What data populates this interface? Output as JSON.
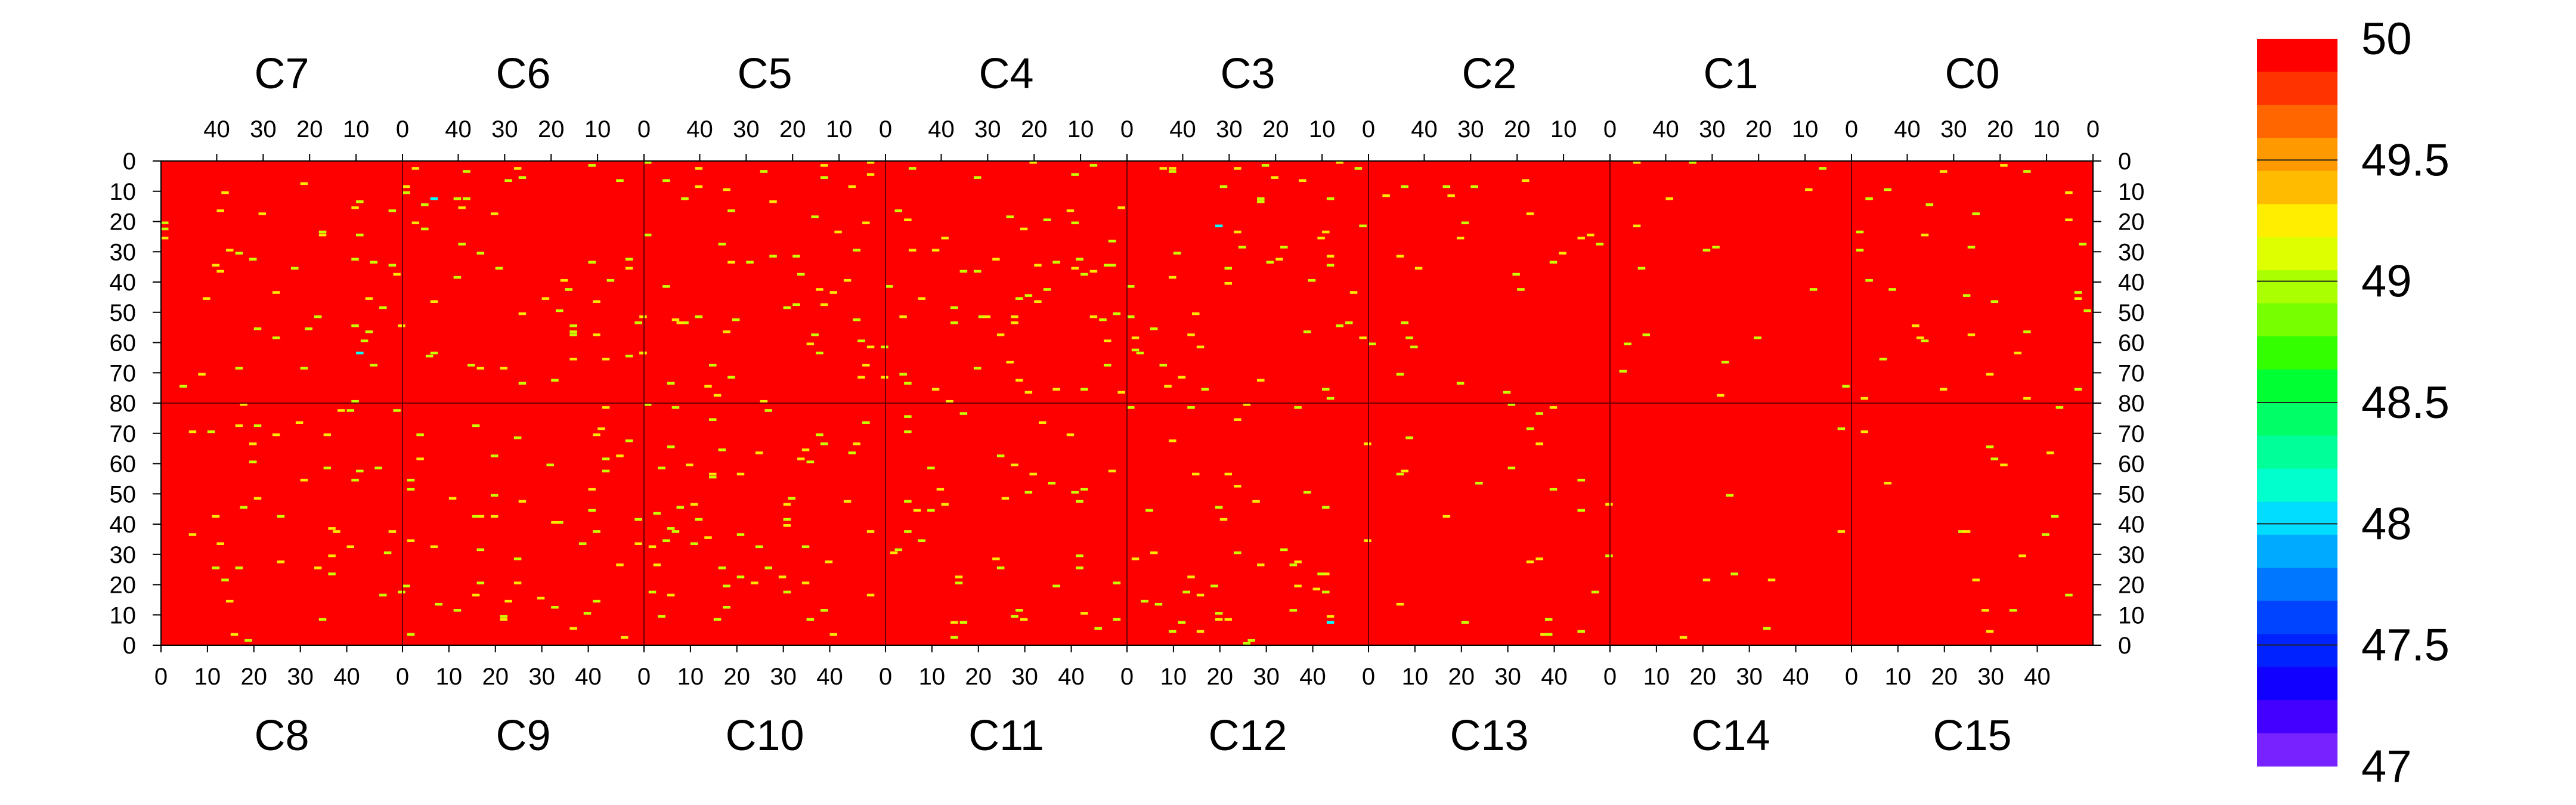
{
  "chart_data": {
    "type": "heatmap",
    "title": "",
    "top_chip_labels": [
      "C7",
      "C6",
      "C5",
      "C4",
      "C3",
      "C2",
      "C1",
      "C0"
    ],
    "bottom_chip_labels": [
      "C8",
      "C9",
      "C10",
      "C11",
      "C12",
      "C13",
      "C14",
      "C15"
    ],
    "top_x_tick_labels": [
      "40",
      "30",
      "20",
      "10",
      "0"
    ],
    "bottom_x_tick_labels": [
      "0",
      "10",
      "20",
      "30",
      "40"
    ],
    "y_tick_labels": [
      "0",
      "10",
      "20",
      "30",
      "40",
      "50",
      "60",
      "70",
      "80",
      "70",
      "60",
      "50",
      "40",
      "30",
      "20",
      "10",
      "0"
    ],
    "columns_per_chip": 52,
    "rows_per_half": 80,
    "grid": false,
    "chip_boundary_lines": true,
    "z_range": [
      47,
      50
    ],
    "background_value": 50,
    "colorbar": {
      "placement": "right",
      "tick_labels": [
        "50",
        "49.5",
        "49",
        "48.5",
        "48",
        "47.5",
        "47"
      ],
      "colors": [
        "#ff0000",
        "#ff3300",
        "#ff6600",
        "#ff9900",
        "#ffbb00",
        "#ffee00",
        "#ddff00",
        "#aaff00",
        "#77ff00",
        "#33ff00",
        "#00ff33",
        "#00ff66",
        "#00ff99",
        "#00ffcc",
        "#00ddff",
        "#00aaff",
        "#0077ff",
        "#0044ff",
        "#0022ff",
        "#1100ff",
        "#4400ff",
        "#7722ff"
      ]
    },
    "accent_colors": {
      "background": "#ff0000",
      "deviation_main": "#c8ff00",
      "deviation_high": "#ffe800",
      "deviation_low": "#00ffff"
    },
    "notes_visible": "Most pixels at 50; scattered pixels at ~49-49.5 (yellow-green), a few at ~48 (cyan)"
  }
}
